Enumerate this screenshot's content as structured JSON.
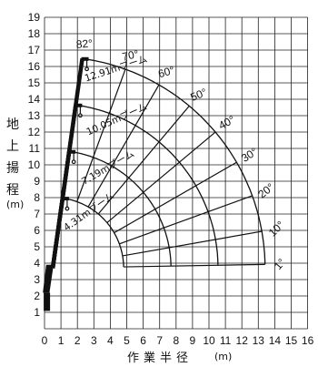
{
  "chart_data": {
    "type": "diagram",
    "x_axis": {
      "label": "作業半径",
      "unit": "(m)",
      "ticks": [
        "0",
        "1",
        "2",
        "3",
        "4",
        "5",
        "6",
        "7",
        "8",
        "9",
        "10",
        "11",
        "12",
        "13",
        "14",
        "15",
        "16"
      ],
      "range": [
        0,
        16
      ]
    },
    "y_axis": {
      "label": "地上揚程",
      "unit": "(m)",
      "ticks": [
        "0",
        "1",
        "2",
        "3",
        "4",
        "5",
        "6",
        "7",
        "8",
        "9",
        "10",
        "11",
        "12",
        "13",
        "14",
        "15",
        "16",
        "17",
        "18",
        "19"
      ],
      "range": [
        0,
        19
      ]
    },
    "boom_pivot": {
      "x": 0.5,
      "y": 3.7
    },
    "booms": [
      {
        "label": "4.31mブーム",
        "length": 4.31
      },
      {
        "label": "7.19mブーム",
        "length": 7.19
      },
      {
        "label": "10.05mブーム",
        "length": 10.05
      },
      {
        "label": "12.91mブーム",
        "length": 12.91
      }
    ],
    "angles": [
      {
        "label": "1°",
        "deg": 1
      },
      {
        "label": "10°",
        "deg": 10
      },
      {
        "label": "20°",
        "deg": 20
      },
      {
        "label": "30°",
        "deg": 30
      },
      {
        "label": "40°",
        "deg": 40
      },
      {
        "label": "50°",
        "deg": 50
      },
      {
        "label": "60°",
        "deg": 60
      },
      {
        "label": "70°",
        "deg": 70
      },
      {
        "label": "82°",
        "deg": 82
      }
    ]
  }
}
